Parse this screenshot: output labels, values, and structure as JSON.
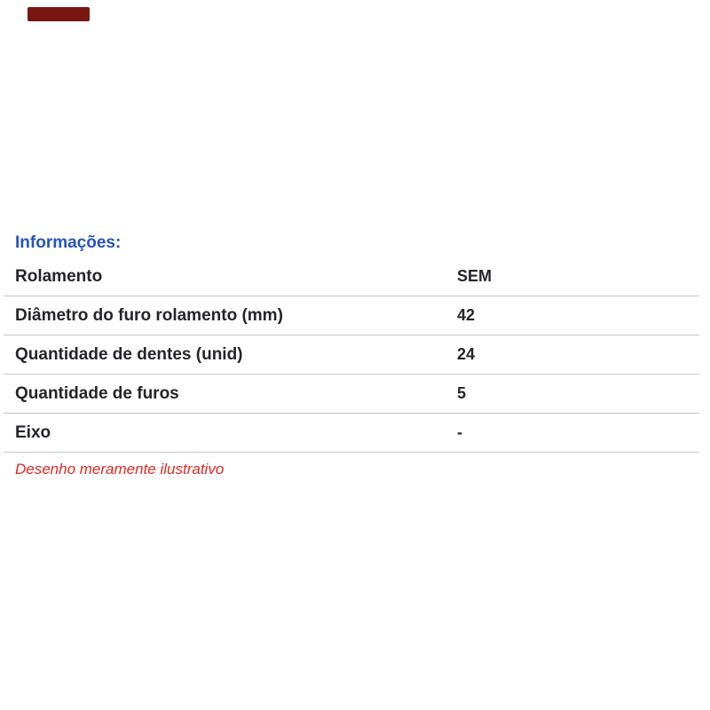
{
  "page": {
    "background_color": "#ffffff",
    "logo_block_color": "#7a1612"
  },
  "info_section": {
    "heading": "Informações:",
    "heading_color": "#2553c0"
  },
  "specs_table": {
    "separator_color": "#c8c8c8",
    "text_color": "#24242a",
    "rows": [
      {
        "label": "Rolamento",
        "value": "SEM"
      },
      {
        "label": "Diâmetro do furo rolamento (mm)",
        "value": "42"
      },
      {
        "label": "Quantidade de dentes (unid)",
        "value": "24"
      },
      {
        "label": "Quantidade de furos",
        "value": "5"
      },
      {
        "label": "Eixo",
        "value": "-"
      }
    ]
  },
  "footnote": {
    "text": "Desenho meramente ilustrativo",
    "color": "#e42823"
  }
}
